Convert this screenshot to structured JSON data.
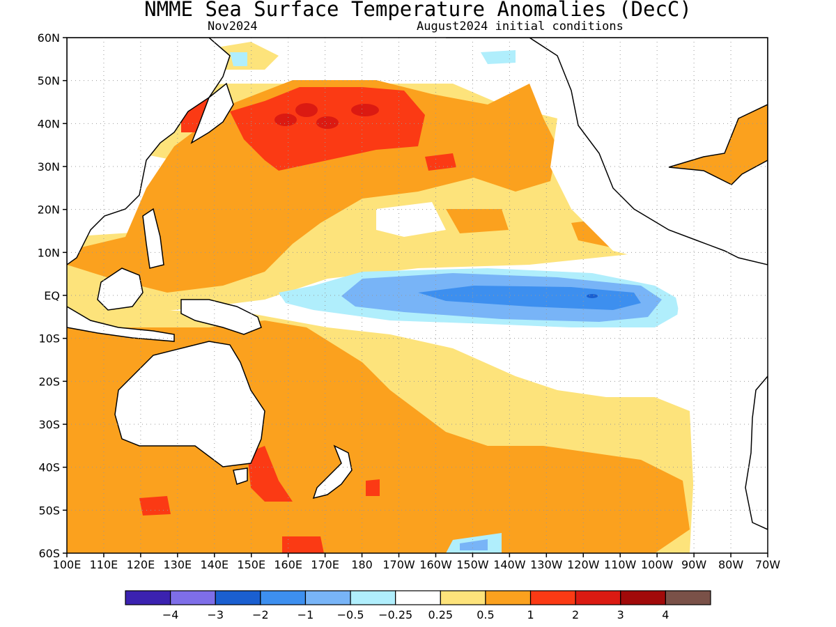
{
  "title": "NMME Sea Surface Temperature Anomalies (DecC)",
  "subtitle_left": "Nov2024",
  "subtitle_right": "August2024 initial conditions",
  "map": {
    "lat_labels": [
      "60N",
      "50N",
      "40N",
      "30N",
      "20N",
      "10N",
      "EQ",
      "10S",
      "20S",
      "30S",
      "40S",
      "50S",
      "60S"
    ],
    "lon_labels": [
      "100E",
      "110E",
      "120E",
      "130E",
      "140E",
      "150E",
      "160E",
      "170E",
      "180",
      "170W",
      "160W",
      "150W",
      "140W",
      "130W",
      "120W",
      "110W",
      "100W",
      "90W",
      "80W",
      "70W"
    ]
  },
  "colorbar": {
    "colors": [
      "#3b22b0",
      "#7e6ee8",
      "#1a5fd0",
      "#3d8fef",
      "#78b4f7",
      "#b0eefc",
      "#ffffff",
      "#fde37b",
      "#fba11e",
      "#fb3a14",
      "#db1a12",
      "#a10a0a",
      "#7a5148"
    ],
    "labels": [
      "−4",
      "−3",
      "−2",
      "−1",
      "−0.5",
      "−0.25",
      "0.25",
      "0.5",
      "1",
      "2",
      "3",
      "4"
    ]
  }
}
